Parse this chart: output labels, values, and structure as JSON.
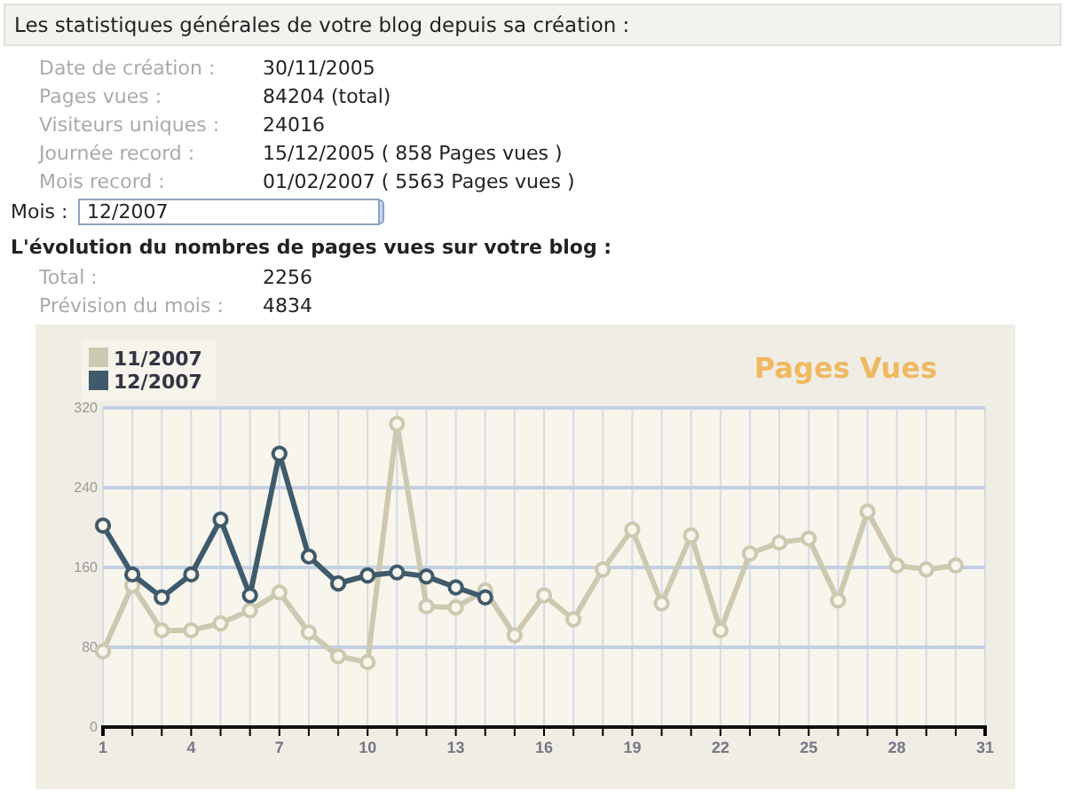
{
  "chart_data": {
    "type": "line",
    "title": "Pages Vues",
    "annotations": [
      "Les statistiques générales de votre blog depuis sa création :",
      "Date de création :",
      "30/11/2005",
      "Pages vues :",
      "84204 (total)",
      "Visiteurs uniques :",
      "24016",
      "Journée record :",
      "15/12/2005 ( 858 Pages vues )",
      "Mois record :",
      "01/02/2007 ( 5563 Pages vues )",
      "Mois :",
      "12/2007",
      "L'évolution du nombres de pages vues sur votre blog :",
      "Total :",
      "2256",
      "Prévision du mois :",
      "4834"
    ],
    "x": [
      1,
      2,
      3,
      4,
      5,
      6,
      7,
      8,
      9,
      10,
      11,
      12,
      13,
      14,
      15,
      16,
      17,
      18,
      19,
      20,
      21,
      22,
      23,
      24,
      25,
      26,
      27,
      28,
      29,
      30
    ],
    "series": [
      {
        "name": "11/2007",
        "color": "#cdc9b0",
        "values": [
          76,
          142,
          97,
          97,
          104,
          117,
          135,
          95,
          71,
          65,
          304,
          121,
          120,
          137,
          92,
          132,
          108,
          158,
          198,
          124,
          192,
          97,
          174,
          185,
          189,
          127,
          216,
          162,
          158,
          162
        ]
      },
      {
        "name": "12/2007",
        "color": "#3f5a6b",
        "values": [
          202,
          153,
          130,
          153,
          208,
          132,
          274,
          171,
          144,
          152,
          155,
          151,
          140,
          130,
          null,
          null,
          null,
          null,
          null,
          null,
          null,
          null,
          null,
          null,
          null,
          null,
          null,
          null,
          null,
          null
        ]
      }
    ],
    "xlim": [
      1,
      31
    ],
    "xticks": [
      1,
      {
        "value": 2,
        "label": null
      },
      {
        "value": 3,
        "label": null
      },
      4,
      {
        "value": 5,
        "label": null
      },
      {
        "value": 6,
        "label": null
      },
      7,
      {
        "value": 8,
        "label": null
      },
      {
        "value": 9,
        "label": null
      },
      10,
      {
        "value": 11,
        "label": null
      },
      {
        "value": 12,
        "label": null
      },
      13,
      {
        "value": 14,
        "label": null
      },
      {
        "value": 15,
        "label": null
      },
      16,
      {
        "value": 17,
        "label": null
      },
      {
        "value": 18,
        "label": null
      },
      19,
      {
        "value": 20,
        "label": null
      },
      {
        "value": 21,
        "label": null
      },
      22,
      {
        "value": 23,
        "label": null
      },
      {
        "value": 24,
        "label": null
      },
      25,
      {
        "value": 26,
        "label": null
      },
      {
        "value": 27,
        "label": null
      },
      28,
      {
        "value": 29,
        "label": null
      },
      {
        "value": 30,
        "label": null
      },
      31
    ],
    "ylim": [
      0,
      320
    ],
    "yticks": [
      0,
      80,
      160,
      240,
      320
    ],
    "grid": true,
    "legend": "top left",
    "marker": "circle",
    "line_style": "solid"
  }
}
